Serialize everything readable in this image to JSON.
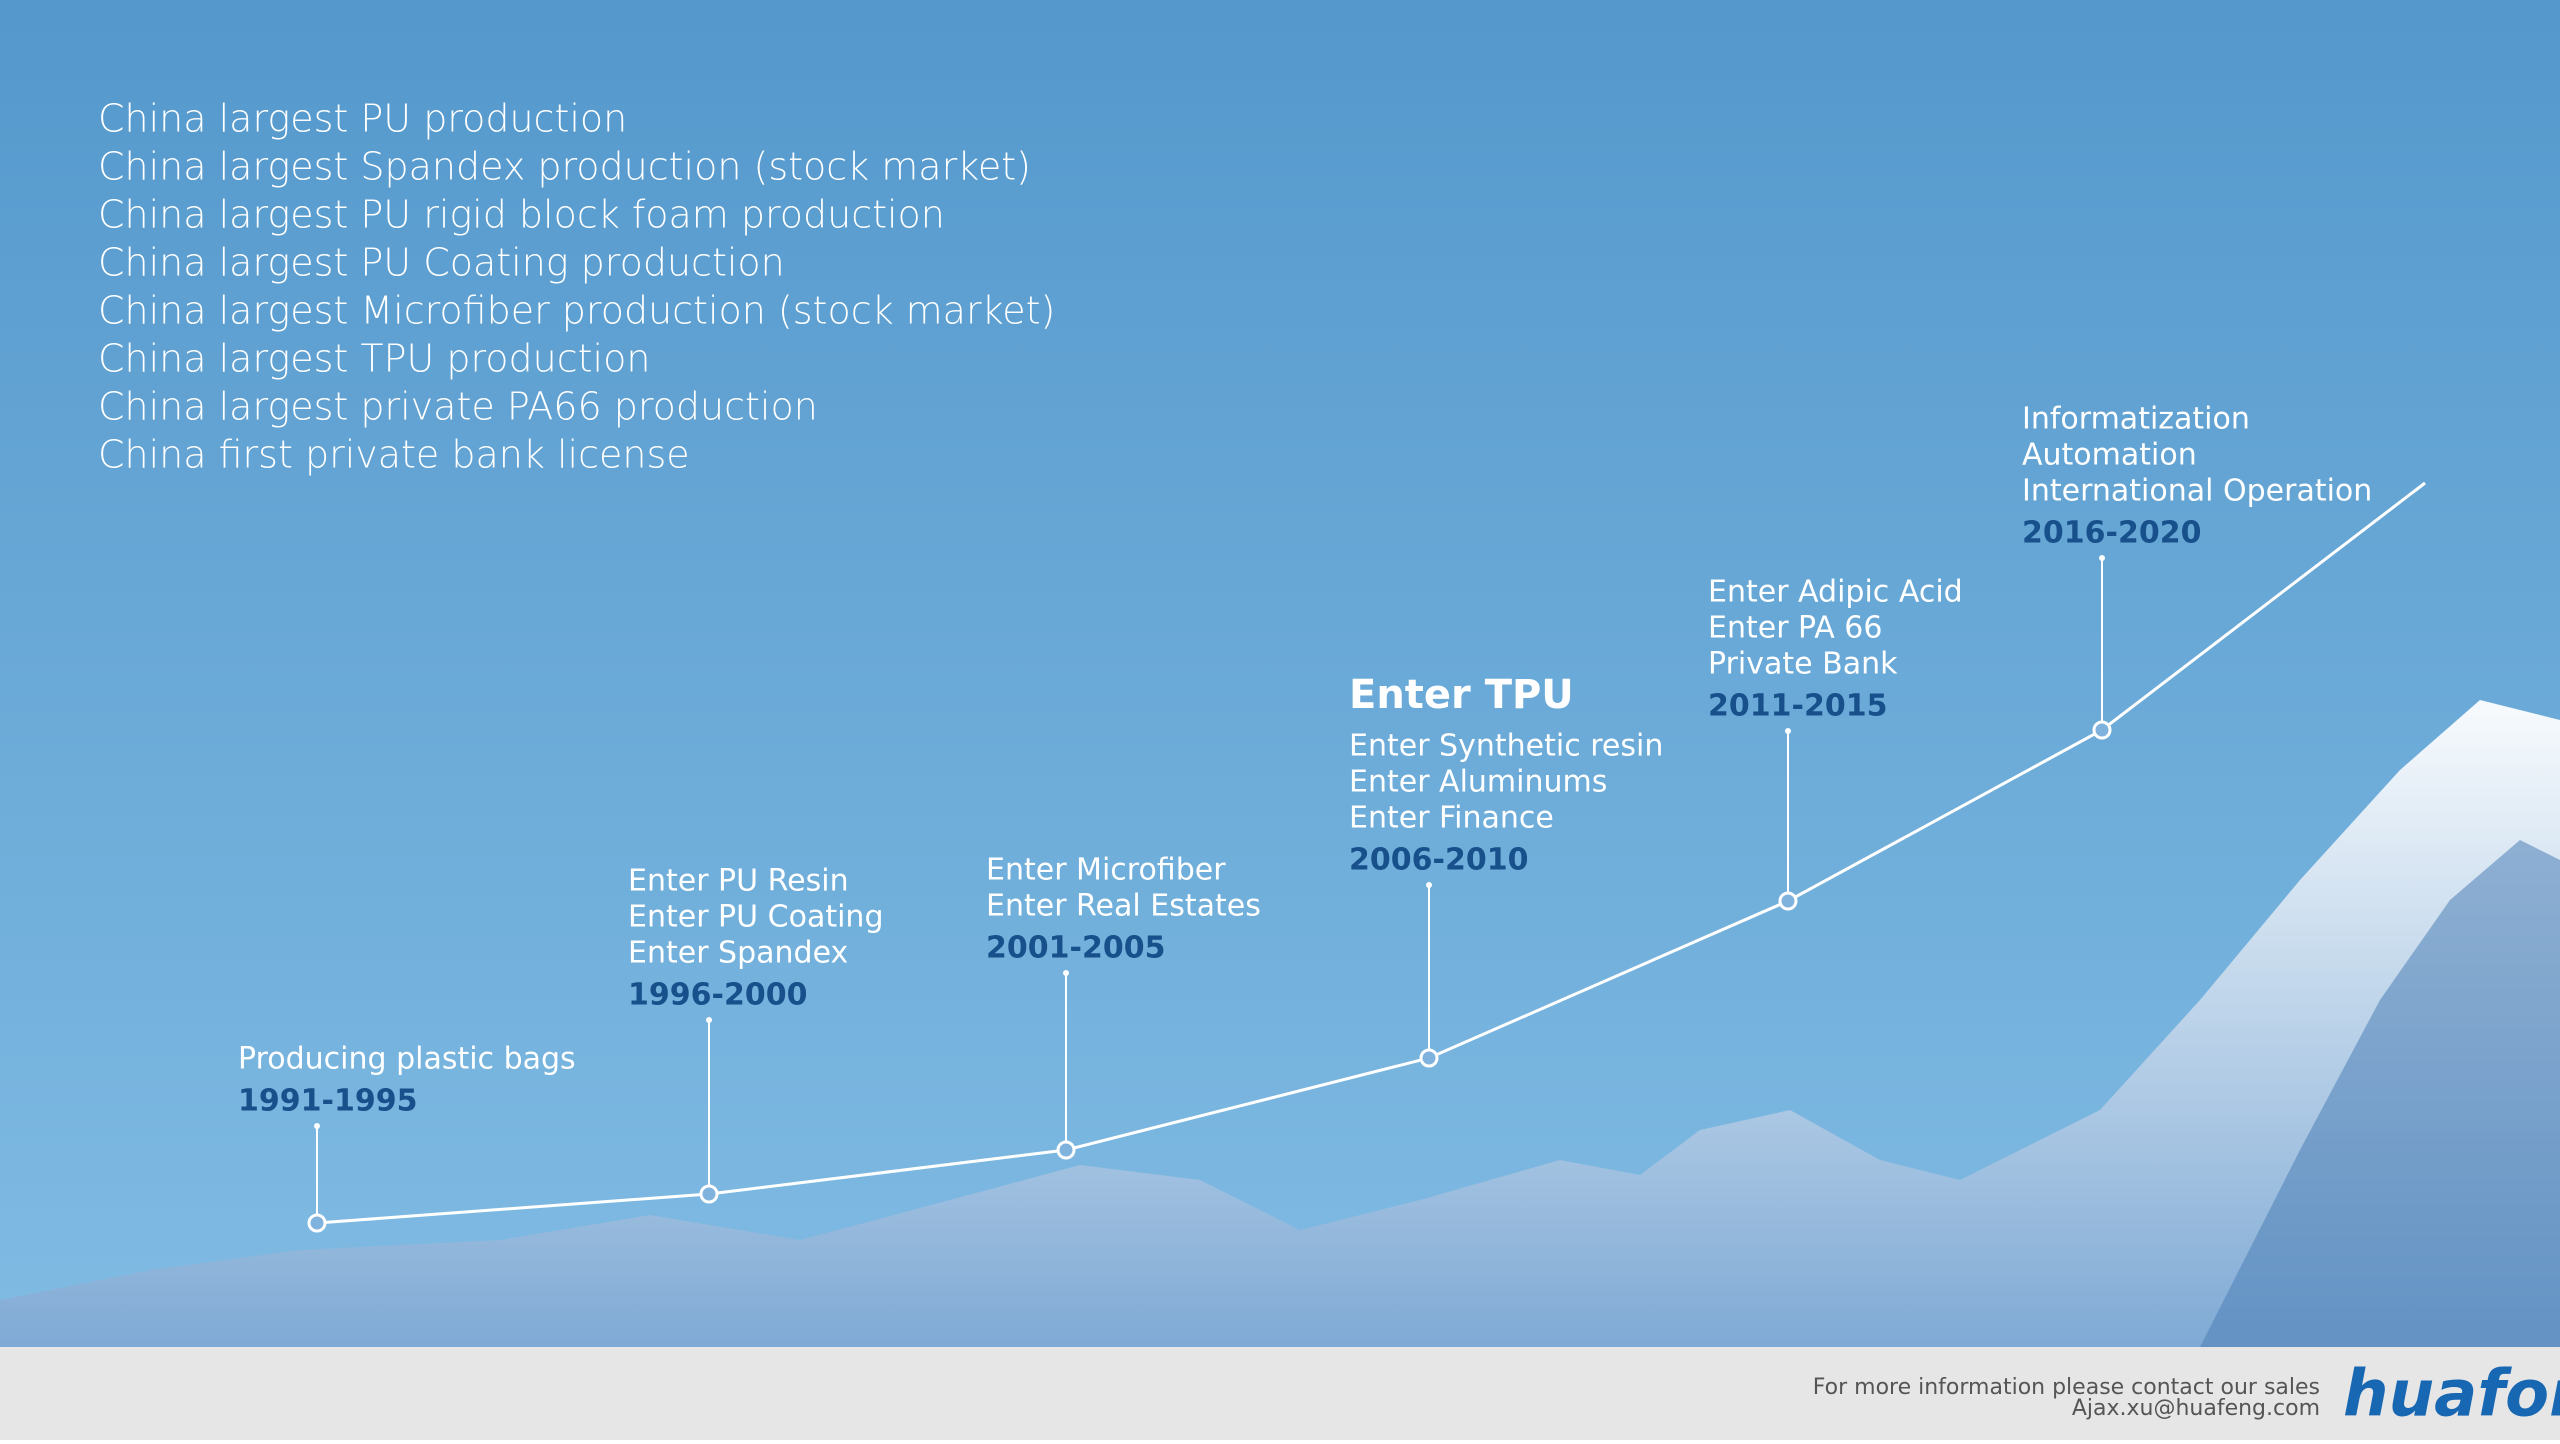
{
  "achievements": [
    "China largest PU production",
    "China largest Spandex production (stock market)",
    "China largest PU rigid block foam production",
    "China largest PU Coating production",
    "China largest Microfiber production (stock market)",
    "China largest TPU production",
    "China largest private PA66 production",
    "China first private bank license"
  ],
  "milestones": [
    {
      "items": [
        "Producing plastic bags"
      ],
      "period": "1991-1995"
    },
    {
      "items": [
        "Enter PU Resin",
        "Enter PU Coating",
        "Enter Spandex"
      ],
      "period": "1996-2000"
    },
    {
      "items": [
        "Enter Microfiber",
        "Enter Real Estates"
      ],
      "period": "2001-2005"
    },
    {
      "headline": "Enter TPU",
      "items": [
        "Enter Synthetic resin",
        "Enter Aluminums",
        "Enter Finance"
      ],
      "period": "2006-2010"
    },
    {
      "items": [
        "Enter Adipic Acid",
        "Enter PA 66",
        "Private Bank"
      ],
      "period": "2011-2015"
    },
    {
      "items": [
        "Informatization",
        "Automation",
        "International Operation"
      ],
      "period": "2016-2020"
    }
  ],
  "footer": {
    "contact": [
      "For more information please contact our sales",
      "Ajax.xu@huafeng.com"
    ],
    "logo": "huafon"
  }
}
